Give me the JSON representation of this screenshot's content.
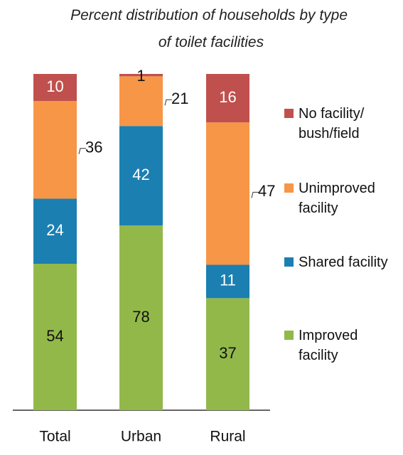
{
  "chart_data": {
    "type": "stacked_bar_percent",
    "title": "Percent distribution of households by type of toilet facilities",
    "categories": [
      "Total",
      "Urban",
      "Rural"
    ],
    "series": [
      {
        "name": "Improved facility",
        "color": "#92b84a",
        "values": [
          54,
          78,
          37
        ]
      },
      {
        "name": "Shared facility",
        "color": "#1b7fb2",
        "values": [
          24,
          42,
          11
        ]
      },
      {
        "name": "Unimproved facility",
        "color": "#f79646",
        "values": [
          36,
          21,
          47
        ]
      },
      {
        "name": "No facility/ bush/field",
        "color": "#c0504d",
        "values": [
          10,
          1,
          16
        ]
      }
    ]
  }
}
